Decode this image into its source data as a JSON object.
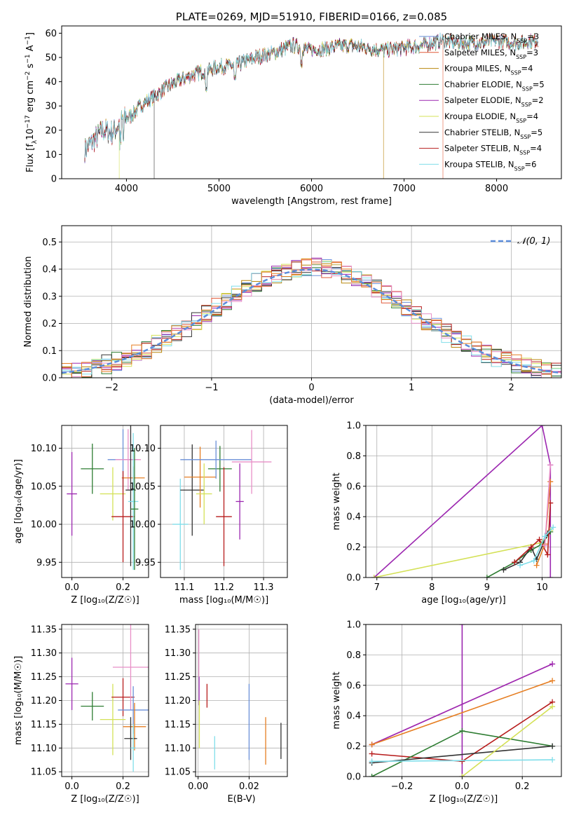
{
  "colors": {
    "chabrier_miles": "#6a8fd8",
    "salpeter_miles": "#e05a3a",
    "kroupa_miles": "#b8860b",
    "chabrier_elodie": "#2e7d32",
    "salpeter_elodie": "#9c27b0",
    "kroupa_elodie": "#d4e157",
    "chabrier_stelib": "#333333",
    "salpeter_stelib": "#b71c1c",
    "kroupa_stelib": "#80deea",
    "normal_curve": "#5b8ddb",
    "grid": "#b0b0b0",
    "pink": "#e88fc7",
    "orange": "#e67e22"
  },
  "chart_data": [
    {
      "id": "spectrum",
      "type": "line",
      "title": "PLATE=0269, MJD=51910, FIBERID=0166, z=0.085",
      "xlabel": "wavelength [Angstrom, rest frame]",
      "ylabel_parts": [
        "Flux [f",
        "λ",
        "10",
        "−17",
        " erg cm",
        "−2",
        " s",
        "−1",
        " A",
        "−1",
        "]"
      ],
      "xlim": [
        3300,
        8700
      ],
      "ylim": [
        0,
        63
      ],
      "xticks": [
        4000,
        5000,
        6000,
        7000,
        8000
      ],
      "yticks": [
        0,
        10,
        20,
        30,
        40,
        50,
        60
      ],
      "legend_position": "upper right",
      "legend": [
        {
          "base": "Chabrier MILES, N",
          "sub": "SSP",
          "tail": "=3",
          "color_key": "chabrier_miles"
        },
        {
          "base": "Salpeter MILES, N",
          "sub": "SSP",
          "tail": "=3",
          "color_key": "salpeter_miles"
        },
        {
          "base": "Kroupa MILES, N",
          "sub": "SSP",
          "tail": "=4",
          "color_key": "kroupa_miles"
        },
        {
          "base": "Chabrier ELODIE, N",
          "sub": "SSP",
          "tail": "=5",
          "color_key": "chabrier_elodie"
        },
        {
          "base": "Salpeter ELODIE, N",
          "sub": "SSP",
          "tail": "=2",
          "color_key": "salpeter_elodie"
        },
        {
          "base": "Kroupa ELODIE, N",
          "sub": "SSP",
          "tail": "=4",
          "color_key": "kroupa_elodie"
        },
        {
          "base": "Chabrier STELIB, N",
          "sub": "SSP",
          "tail": "=5",
          "color_key": "chabrier_stelib"
        },
        {
          "base": "Salpeter STELIB, N",
          "sub": "SSP",
          "tail": "=4",
          "color_key": "salpeter_stelib"
        },
        {
          "base": "Kroupa STELIB, N",
          "sub": "SSP",
          "tail": "=6",
          "color_key": "kroupa_stelib"
        }
      ],
      "continuum": {
        "x": [
          3550,
          3650,
          3750,
          3850,
          3950,
          4050,
          4150,
          4300,
          4450,
          4600,
          4800,
          5000,
          5200,
          5400,
          5600,
          5800,
          6000,
          6200,
          6400,
          6600,
          6800,
          7000,
          7200,
          7400,
          7600,
          7800,
          8000,
          8200,
          8450
        ],
        "y": [
          12,
          16,
          20,
          19,
          24,
          26,
          30,
          34,
          38,
          41,
          44,
          46,
          47,
          50,
          52,
          55,
          53,
          54,
          55,
          54,
          53,
          54,
          55,
          57,
          56,
          56,
          57,
          56,
          57
        ]
      }
    },
    {
      "id": "residuals",
      "type": "histogram",
      "xlabel": "(data-model)/error",
      "ylabel": "Normed distribution",
      "xlim": [
        -2.5,
        2.5
      ],
      "ylim": [
        0,
        0.56
      ],
      "xticks": [
        -2,
        -1,
        0,
        1,
        2
      ],
      "yticks": [
        0.0,
        0.1,
        0.2,
        0.3,
        0.4,
        0.5
      ],
      "legend": "𝒩(0, 1)",
      "bin_width": 0.1
    },
    {
      "id": "age_vs_Z",
      "type": "errorbar",
      "xlabel": "Z [log₁₀(Z/Z☉)]",
      "ylabel": "age  [log₁₀(age/yr)]",
      "xlim": [
        -0.04,
        0.3
      ],
      "ylim": [
        9.93,
        10.13
      ],
      "xticks": [
        0.0,
        0.2
      ],
      "yticks": [
        9.95,
        10.0,
        10.05,
        10.1
      ],
      "points": [
        {
          "x": 0.0,
          "xerr": 0.02,
          "y": 10.04,
          "yerr": 0.055,
          "color_key": "salpeter_elodie"
        },
        {
          "x": 0.08,
          "xerr": 0.045,
          "y": 10.073,
          "yerr": 0.033,
          "color_key": "chabrier_elodie"
        },
        {
          "x": 0.16,
          "xerr": 0.05,
          "y": 10.04,
          "yerr": 0.035,
          "color_key": "kroupa_elodie"
        },
        {
          "x": 0.2,
          "xerr": 0.06,
          "y": 10.085,
          "yerr": 0.04,
          "color_key": "chabrier_miles"
        },
        {
          "x": 0.22,
          "xerr": 0.05,
          "y": 10.085,
          "yerr": 0.04,
          "color_key": "pink"
        },
        {
          "x": 0.24,
          "xerr": 0.045,
          "y": 10.061,
          "yerr": 0.015,
          "color_key": "orange"
        },
        {
          "x": 0.2,
          "xerr": 0.045,
          "y": 10.01,
          "yerr": 0.06,
          "color_key": "salpeter_stelib"
        },
        {
          "x": 0.23,
          "xerr": 0.02,
          "y": 10.045,
          "yerr": 0.1,
          "color_key": "chabrier_stelib"
        },
        {
          "x": 0.24,
          "xerr": 0.02,
          "y": 10.03,
          "yerr": 0.09,
          "color_key": "kroupa_stelib"
        },
        {
          "x": 0.245,
          "xerr": 0.015,
          "y": 10.02,
          "yerr": 0.08,
          "color_key": "chabrier_elodie"
        }
      ]
    },
    {
      "id": "age_vs_mass",
      "type": "errorbar",
      "xlabel": "mass [log₁₀(M/M☉)]",
      "ylabel": "",
      "xlim": [
        11.04,
        11.36
      ],
      "ylim": [
        9.93,
        10.13
      ],
      "xticks": [
        11.1,
        11.2,
        11.3
      ],
      "yticks": [
        9.95,
        10.0,
        10.05,
        10.1
      ],
      "points": [
        {
          "x": 11.09,
          "xerr": 0.02,
          "y": 10.0,
          "yerr": 0.06,
          "color_key": "kroupa_stelib"
        },
        {
          "x": 11.12,
          "xerr": 0.03,
          "y": 10.045,
          "yerr": 0.06,
          "color_key": "chabrier_stelib"
        },
        {
          "x": 11.14,
          "xerr": 0.04,
          "y": 10.062,
          "yerr": 0.04,
          "color_key": "orange"
        },
        {
          "x": 11.15,
          "xerr": 0.02,
          "y": 10.04,
          "yerr": 0.04,
          "color_key": "kroupa_elodie"
        },
        {
          "x": 11.19,
          "xerr": 0.03,
          "y": 10.073,
          "yerr": 0.03,
          "color_key": "chabrier_elodie"
        },
        {
          "x": 11.18,
          "xerr": 0.09,
          "y": 10.085,
          "yerr": 0.025,
          "color_key": "chabrier_miles"
        },
        {
          "x": 11.2,
          "xerr": 0.02,
          "y": 10.01,
          "yerr": 0.065,
          "color_key": "salpeter_stelib"
        },
        {
          "x": 11.27,
          "xerr": 0.05,
          "y": 10.082,
          "yerr": 0.042,
          "color_key": "pink"
        },
        {
          "x": 11.24,
          "xerr": 0.01,
          "y": 10.03,
          "yerr": 0.05,
          "color_key": "salpeter_elodie"
        }
      ]
    },
    {
      "id": "weight_vs_age",
      "type": "line",
      "xlabel": "age  [log₁₀(age/yr)]",
      "ylabel": "mass weight",
      "xlim": [
        6.8,
        10.35
      ],
      "ylim": [
        0,
        1.0
      ],
      "xticks": [
        7,
        8,
        9,
        10
      ],
      "yticks": [
        0.0,
        0.2,
        0.4,
        0.6,
        0.8,
        1.0
      ],
      "series": [
        {
          "color_key": "salpeter_elodie",
          "x": [
            6.95,
            10.0,
            10.15,
            10.15
          ],
          "y": [
            0.0,
            1.0,
            0.74,
            0.0
          ]
        },
        {
          "color_key": "kroupa_elodie",
          "x": [
            6.95,
            10.0,
            10.15
          ],
          "y": [
            0.0,
            0.23,
            0.31
          ]
        },
        {
          "color_key": "chabrier_elodie",
          "x": [
            9.0,
            9.5,
            9.8,
            10.0,
            10.15
          ],
          "y": [
            0.0,
            0.1,
            0.18,
            0.22,
            0.3
          ]
        },
        {
          "color_key": "chabrier_stelib",
          "x": [
            9.3,
            9.6,
            9.8,
            9.9,
            10.1
          ],
          "y": [
            0.05,
            0.1,
            0.2,
            0.12,
            0.29
          ]
        },
        {
          "color_key": "salpeter_stelib",
          "x": [
            9.5,
            9.8,
            9.95,
            10.1,
            10.15
          ],
          "y": [
            0.1,
            0.2,
            0.25,
            0.15,
            0.49
          ]
        },
        {
          "color_key": "orange",
          "x": [
            9.9,
            10.05,
            10.15
          ],
          "y": [
            0.08,
            0.22,
            0.63
          ]
        },
        {
          "color_key": "pink",
          "x": [
            10.05,
            10.15
          ],
          "y": [
            0.21,
            0.74
          ]
        },
        {
          "color_key": "kroupa_stelib",
          "x": [
            9.6,
            9.85,
            10.05,
            10.2
          ],
          "y": [
            0.08,
            0.11,
            0.27,
            0.33
          ]
        }
      ]
    },
    {
      "id": "mass_vs_Z",
      "type": "errorbar",
      "xlabel": "Z [log₁₀(Z/Z☉)]",
      "ylabel": "mass [log₁₀(M/M☉)]",
      "xlim": [
        -0.04,
        0.3
      ],
      "ylim": [
        11.04,
        11.36
      ],
      "xticks": [
        0.0,
        0.2
      ],
      "yticks": [
        11.05,
        11.1,
        11.15,
        11.2,
        11.25,
        11.3,
        11.35
      ],
      "points": [
        {
          "x": 0.0,
          "xerr": 0.025,
          "y": 11.235,
          "yerr": 0.055,
          "color_key": "salpeter_elodie"
        },
        {
          "x": 0.08,
          "xerr": 0.045,
          "y": 11.188,
          "yerr": 0.03,
          "color_key": "chabrier_elodie"
        },
        {
          "x": 0.16,
          "xerr": 0.05,
          "y": 11.16,
          "yerr": 0.075,
          "color_key": "kroupa_elodie"
        },
        {
          "x": 0.2,
          "xerr": 0.045,
          "y": 11.207,
          "yerr": 0.04,
          "color_key": "salpeter_stelib"
        },
        {
          "x": 0.23,
          "xerr": 0.07,
          "y": 11.27,
          "yerr": 0.09,
          "color_key": "pink"
        },
        {
          "x": 0.24,
          "xerr": 0.06,
          "y": 11.18,
          "yerr": 0.05,
          "color_key": "chabrier_miles"
        },
        {
          "x": 0.245,
          "xerr": 0.045,
          "y": 11.145,
          "yerr": 0.05,
          "color_key": "orange"
        },
        {
          "x": 0.23,
          "xerr": 0.025,
          "y": 11.12,
          "yerr": 0.045,
          "color_key": "chabrier_stelib"
        },
        {
          "x": 0.24,
          "xerr": 0.01,
          "y": 11.1,
          "yerr": 0.05,
          "color_key": "kroupa_stelib"
        }
      ]
    },
    {
      "id": "mass_vs_ebv",
      "type": "errorbar",
      "xlabel": "E(B-V)",
      "ylabel": "",
      "xlim": [
        -0.001,
        0.035
      ],
      "ylim": [
        11.04,
        11.36
      ],
      "xticks": [
        0.0,
        0.02
      ],
      "yticks": [
        11.05,
        11.1,
        11.15,
        11.2,
        11.25,
        11.3,
        11.35
      ],
      "points": [
        {
          "x": 0.0003,
          "y": 11.3,
          "yerr": 0.05,
          "color_key": "pink"
        },
        {
          "x": 0.0004,
          "y": 11.22,
          "yerr": 0.03,
          "color_key": "salpeter_elodie"
        },
        {
          "x": 0.0005,
          "y": 11.15,
          "yerr": 0.05,
          "color_key": "kroupa_elodie"
        },
        {
          "x": 0.0035,
          "y": 11.21,
          "yerr": 0.025,
          "color_key": "salpeter_stelib"
        },
        {
          "x": 0.0065,
          "y": 11.09,
          "yerr": 0.035,
          "color_key": "kroupa_stelib"
        },
        {
          "x": 0.02,
          "y": 11.155,
          "yerr": 0.08,
          "color_key": "chabrier_miles"
        },
        {
          "x": 0.0265,
          "y": 11.115,
          "yerr": 0.05,
          "color_key": "orange"
        },
        {
          "x": 0.0325,
          "y": 11.115,
          "yerr": 0.038,
          "color_key": "chabrier_stelib"
        }
      ]
    },
    {
      "id": "weight_vs_Z",
      "type": "line",
      "xlabel": "Z [log₁₀(Z/Z☉)]",
      "ylabel": "mass weight",
      "xlim": [
        -0.32,
        0.33
      ],
      "ylim": [
        0,
        1.0
      ],
      "xticks": [
        -0.2,
        0.0,
        0.2
      ],
      "yticks": [
        0.0,
        0.2,
        0.4,
        0.6,
        0.8,
        1.0
      ],
      "series": [
        {
          "color_key": "pink",
          "x": [
            -0.3,
            0.3
          ],
          "y": [
            0.21,
            0.74
          ]
        },
        {
          "color_key": "salpeter_elodie",
          "x": [
            -0.3,
            0.3
          ],
          "y": [
            0.21,
            0.74
          ]
        },
        {
          "color_key": "salpeter_elodie",
          "x": [
            0.0,
            0.0
          ],
          "y": [
            0.0,
            1.0
          ]
        },
        {
          "color_key": "orange",
          "x": [
            -0.3,
            0.3
          ],
          "y": [
            0.21,
            0.63
          ]
        },
        {
          "color_key": "salpeter_stelib",
          "x": [
            -0.3,
            0.0,
            0.3
          ],
          "y": [
            0.15,
            0.1,
            0.49
          ]
        },
        {
          "color_key": "chabrier_elodie",
          "x": [
            -0.3,
            0.0,
            0.3
          ],
          "y": [
            0.0,
            0.3,
            0.2
          ]
        },
        {
          "color_key": "chabrier_stelib",
          "x": [
            -0.3,
            0.3
          ],
          "y": [
            0.09,
            0.2
          ]
        },
        {
          "color_key": "kroupa_elodie",
          "x": [
            0.0,
            0.3
          ],
          "y": [
            0.0,
            0.46
          ]
        },
        {
          "color_key": "kroupa_stelib",
          "x": [
            -0.3,
            0.3
          ],
          "y": [
            0.1,
            0.11
          ]
        }
      ]
    }
  ]
}
